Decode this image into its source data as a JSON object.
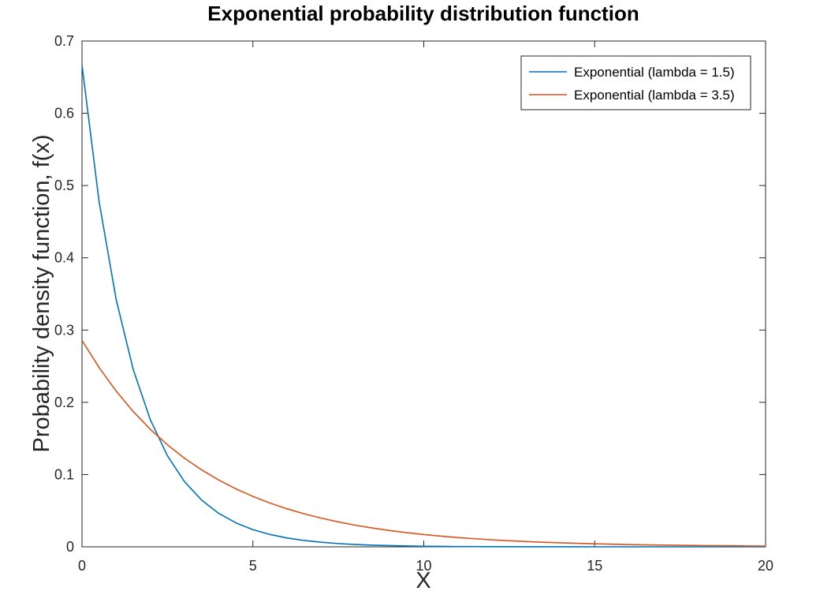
{
  "chart_data": {
    "type": "line",
    "title": "Exponential probability distribution function",
    "xlabel": "X",
    "ylabel": "Probability density function, f(x)",
    "xlim": [
      0,
      20
    ],
    "ylim": [
      0,
      0.7
    ],
    "xticks": [
      0,
      5,
      10,
      15,
      20
    ],
    "yticks": [
      0,
      0.1,
      0.2,
      0.3,
      0.4,
      0.5,
      0.6,
      0.7
    ],
    "xtick_labels": [
      "0",
      "5",
      "10",
      "15",
      "20"
    ],
    "ytick_labels": [
      "0",
      "0.1",
      "0.2",
      "0.3",
      "0.4",
      "0.5",
      "0.6",
      "0.7"
    ],
    "grid": false,
    "legend_position": "top-right",
    "x": [
      0,
      0.5,
      1,
      1.5,
      2,
      2.5,
      3,
      3.5,
      4,
      4.5,
      5,
      5.5,
      6,
      6.5,
      7,
      7.5,
      8,
      8.5,
      9,
      9.5,
      10,
      10.5,
      11,
      11.5,
      12,
      12.5,
      13,
      13.5,
      14,
      14.5,
      15,
      15.5,
      16,
      16.5,
      17,
      17.5,
      18,
      18.5,
      19,
      19.5,
      20
    ],
    "series": [
      {
        "name": "Exponential (lambda = 1.5)",
        "color": "#0072BD",
        "values": [
          0.6667,
          0.4779,
          0.3423,
          0.2453,
          0.1758,
          0.1259,
          0.0902,
          0.0647,
          0.0463,
          0.0332,
          0.0238,
          0.0171,
          0.0122,
          0.0088,
          0.0063,
          0.0045,
          0.0032,
          0.0023,
          0.0017,
          0.0012,
          0.0008,
          0.0006,
          0.0004,
          0.0003,
          0.0002,
          0.0002,
          0.0001,
          0.0001,
          0.0001,
          0.0001,
          0.0,
          0.0,
          0.0,
          0.0,
          0.0,
          0.0,
          0.0,
          0.0,
          0.0,
          0.0,
          0.0
        ]
      },
      {
        "name": "Exponential (lambda = 3.5)",
        "color": "#D95319",
        "values": [
          0.2857,
          0.2482,
          0.2155,
          0.1872,
          0.1626,
          0.1412,
          0.1226,
          0.1065,
          0.0925,
          0.0803,
          0.0698,
          0.0606,
          0.0526,
          0.0457,
          0.0397,
          0.0345,
          0.0299,
          0.026,
          0.0226,
          0.0196,
          0.017,
          0.0148,
          0.0128,
          0.0112,
          0.0097,
          0.0084,
          0.0073,
          0.0064,
          0.0055,
          0.0048,
          0.0042,
          0.0036,
          0.0031,
          0.0027,
          0.0024,
          0.0021,
          0.0018,
          0.0016,
          0.0014,
          0.0012,
          0.001
        ]
      }
    ]
  }
}
